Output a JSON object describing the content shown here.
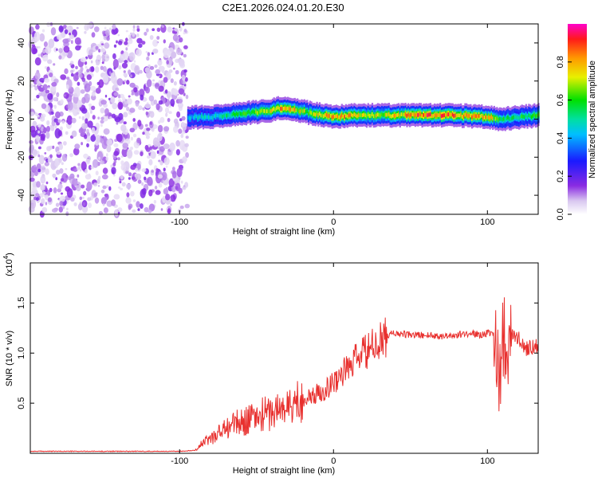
{
  "title": "C2E1.2026.024.01.20.E30",
  "chart_data": [
    {
      "type": "heatmap",
      "name": "spectrogram",
      "xlabel": "Height of straight line (km)",
      "ylabel": "Frequency (Hz)",
      "xlim": [
        -197,
        133
      ],
      "ylim": [
        -50,
        50
      ],
      "xticks": [
        -100,
        0,
        100
      ],
      "xtick_labels": [
        "-100",
        "0",
        "100"
      ],
      "yticks": [
        -40,
        -20,
        0,
        20,
        40
      ],
      "ytick_labels": [
        "-40",
        "-20",
        "0",
        "20",
        "40"
      ],
      "noise_region_x": [
        -197,
        -95
      ],
      "signal_band": {
        "x": [
          -95,
          -80,
          -60,
          -45,
          -35,
          -25,
          -15,
          0,
          10,
          30,
          60,
          80,
          100,
          108,
          120,
          133
        ],
        "center_hz": [
          1,
          1,
          3,
          4,
          6,
          5,
          3,
          1,
          2,
          2,
          2,
          2,
          1,
          0,
          1,
          2
        ],
        "peak_amplitude": [
          0.45,
          0.5,
          0.6,
          0.75,
          0.85,
          0.8,
          0.7,
          0.9,
          0.85,
          0.75,
          0.95,
          0.9,
          0.85,
          0.6,
          0.6,
          0.65
        ]
      },
      "colorbar": {
        "label": "Normalized spectral amplitude",
        "range": [
          0,
          1
        ],
        "ticks": [
          0.0,
          0.2,
          0.4,
          0.6,
          0.8
        ],
        "tick_labels": [
          "0.0",
          "0.2",
          "0.4",
          "0.6",
          "0.8"
        ]
      }
    },
    {
      "type": "line",
      "name": "snr",
      "xlabel": "Height of straight line (km)",
      "ylabel": "SNR (10 * v/v)",
      "scale_label": "(x10",
      "scale_exponent": "4",
      "scale_suffix": ")",
      "xlim": [
        -197,
        133
      ],
      "ylim": [
        0,
        1.9
      ],
      "xticks": [
        -100,
        0,
        100
      ],
      "xtick_labels": [
        "-100",
        "0",
        "100"
      ],
      "yticks": [
        0.5,
        1.0,
        1.5
      ],
      "ytick_labels": [
        "0.5",
        "1.0",
        "1.5"
      ],
      "color": "#e8302e",
      "series": [
        {
          "name": "SNR",
          "x": [
            -197,
            -150,
            -100,
            -90,
            -85,
            -80,
            -75,
            -70,
            -65,
            -60,
            -55,
            -50,
            -45,
            -40,
            -35,
            -30,
            -25,
            -20,
            -15,
            -10,
            -5,
            0,
            5,
            10,
            15,
            20,
            25,
            30,
            35,
            40,
            50,
            60,
            70,
            80,
            90,
            95,
            100,
            105,
            108,
            110,
            112,
            115,
            120,
            125,
            133
          ],
          "y": [
            0.02,
            0.02,
            0.02,
            0.03,
            0.1,
            0.15,
            0.2,
            0.25,
            0.3,
            0.3,
            0.35,
            0.35,
            0.4,
            0.4,
            0.45,
            0.45,
            0.5,
            0.55,
            0.55,
            0.6,
            0.65,
            0.7,
            0.8,
            0.85,
            0.95,
            1.0,
            1.05,
            1.1,
            1.18,
            1.2,
            1.18,
            1.18,
            1.17,
            1.18,
            1.2,
            1.18,
            1.2,
            1.18,
            0.8,
            1.2,
            1.1,
            1.18,
            1.15,
            1.05,
            1.08
          ]
        }
      ]
    }
  ]
}
